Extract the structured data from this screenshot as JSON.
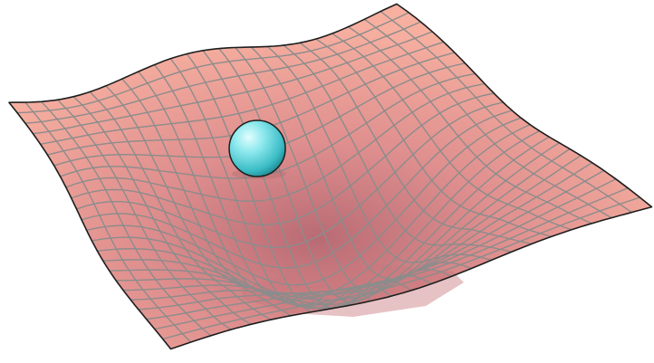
{
  "scene": {
    "background_color": "#ffffff",
    "surface_color": "#f2a89a",
    "surface_shadow_color": "#c47a7a",
    "grid_line_color": "#8c8c8c",
    "outline_color": "#1e1e1e",
    "ball_color": "#6fdde3",
    "ball_highlight_color": "#d8fbfc",
    "ball_shadow_color": "#1f8a93",
    "grid_divisions": 24
  }
}
